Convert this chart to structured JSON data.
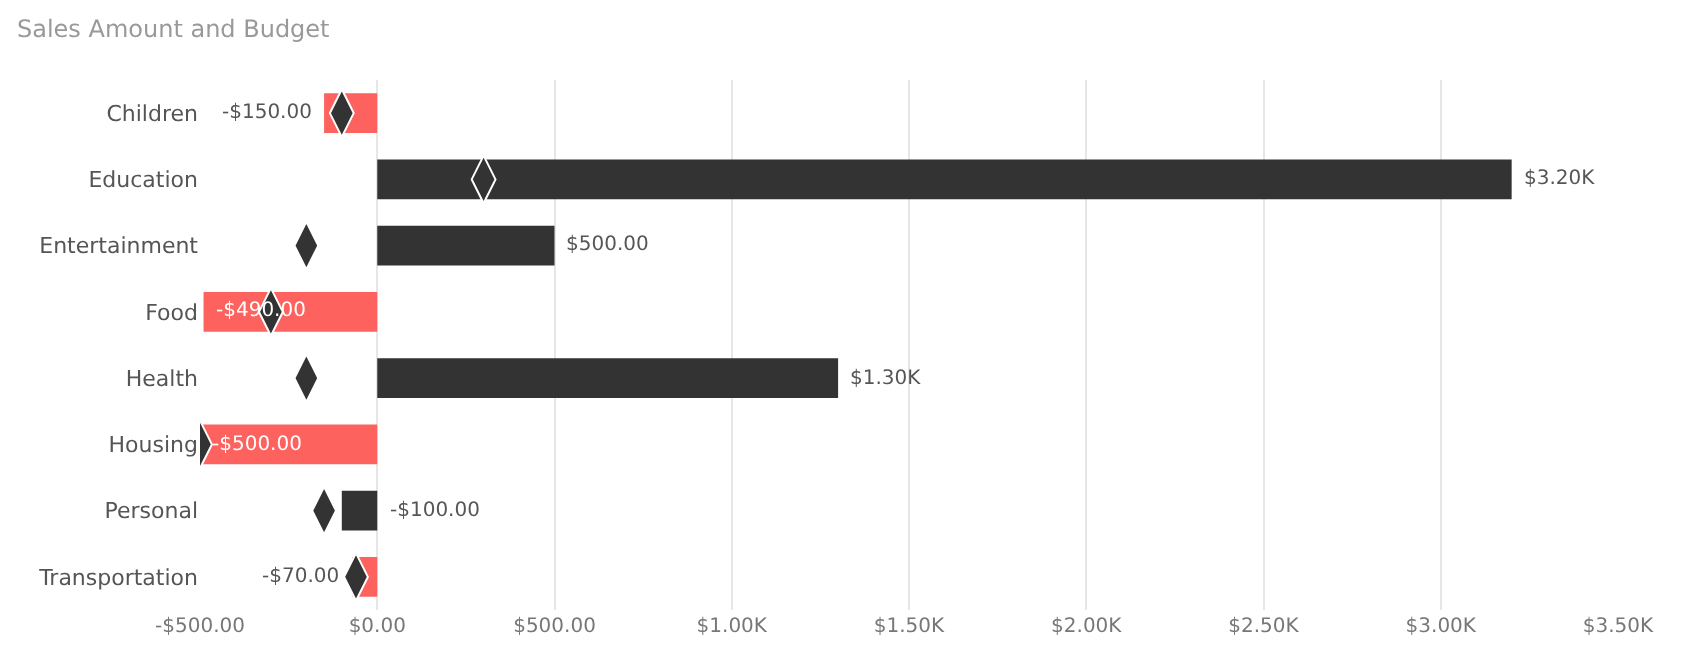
{
  "chart_data": {
    "type": "bar",
    "orientation": "horizontal",
    "title": "Sales Amount and Budget",
    "categories": [
      "Children",
      "Education",
      "Entertainment",
      "Food",
      "Health",
      "Housing",
      "Personal",
      "Transportation"
    ],
    "series": [
      {
        "colors": [
          "#fd625e",
          "#333333",
          "#333333",
          "#fd625e",
          "#333333",
          "#fd625e",
          "#333333",
          "#fd625e"
        ],
        "values": [
          -150,
          3200,
          500,
          -490,
          1300,
          -500,
          -100,
          -70
        ],
        "value_labels": [
          "-$150.00",
          "$3.20K",
          "$500.00",
          "-$490.00",
          "$1.30K",
          "-$500.00",
          "-$100.00",
          "-$70.00"
        ]
      },
      {
        "type": "scatter",
        "marker": "diamond",
        "color": "#333333",
        "values": [
          -100,
          300,
          -200,
          -300,
          -200,
          -500,
          -150,
          -60
        ]
      }
    ],
    "xlim": [
      -500,
      3500
    ],
    "xticks": [
      {
        "value": -500,
        "label": "-$500.00"
      },
      {
        "value": 0,
        "label": "$0.00"
      },
      {
        "value": 500,
        "label": "$500.00"
      },
      {
        "value": 1000,
        "label": "$1.00K"
      },
      {
        "value": 1500,
        "label": "$1.50K"
      },
      {
        "value": 2000,
        "label": "$2.00K"
      },
      {
        "value": 2500,
        "label": "$2.50K"
      },
      {
        "value": 3000,
        "label": "$3.00K"
      },
      {
        "value": 3500,
        "label": "$3.50K"
      }
    ],
    "grid": "x"
  }
}
